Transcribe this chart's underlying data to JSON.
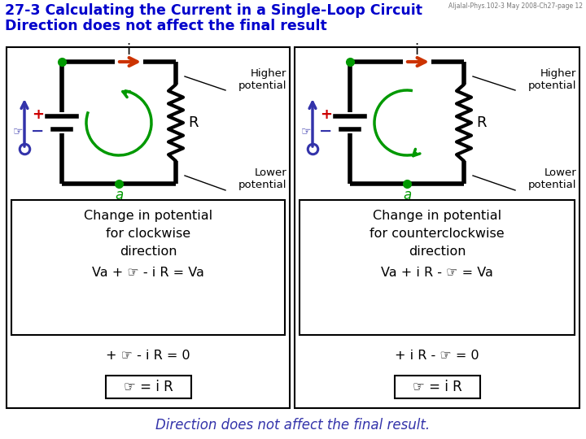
{
  "title_line1": "27-3 Calculating the Current in a Single-Loop Circuit",
  "title_line2": "Direction does not affect the final result",
  "header_text": "Aljalal-Phys.102-3 May 2008-Ch27-page 12",
  "title_color": "#0000cc",
  "header_color": "#777777",
  "bg_color": "#ffffff",
  "arrow_color": "#cc3300",
  "loop_color": "#009900",
  "dot_color": "#009900",
  "battery_blue": "#3333aa",
  "plus_color": "#cc0000",
  "minus_color": "#3333aa",
  "label_a_color": "#009900",
  "bottom_text": "Direction does not affect the final result.",
  "bottom_text_color": "#3333aa",
  "left_box_lines": [
    "Change in potential",
    "for clockwise",
    "direction"
  ],
  "left_formula1": "Va + ☞ - i R = Va",
  "left_formula2": "+ ☞ - i R = 0",
  "left_formula3": "☞ = i R",
  "right_box_lines": [
    "Change in potential",
    "for counterclockwise",
    "direction"
  ],
  "right_formula1": "Va + i R - ☞ = Va",
  "right_formula2": "+ i R - ☞ = 0",
  "right_formula3": "☞ = i R"
}
